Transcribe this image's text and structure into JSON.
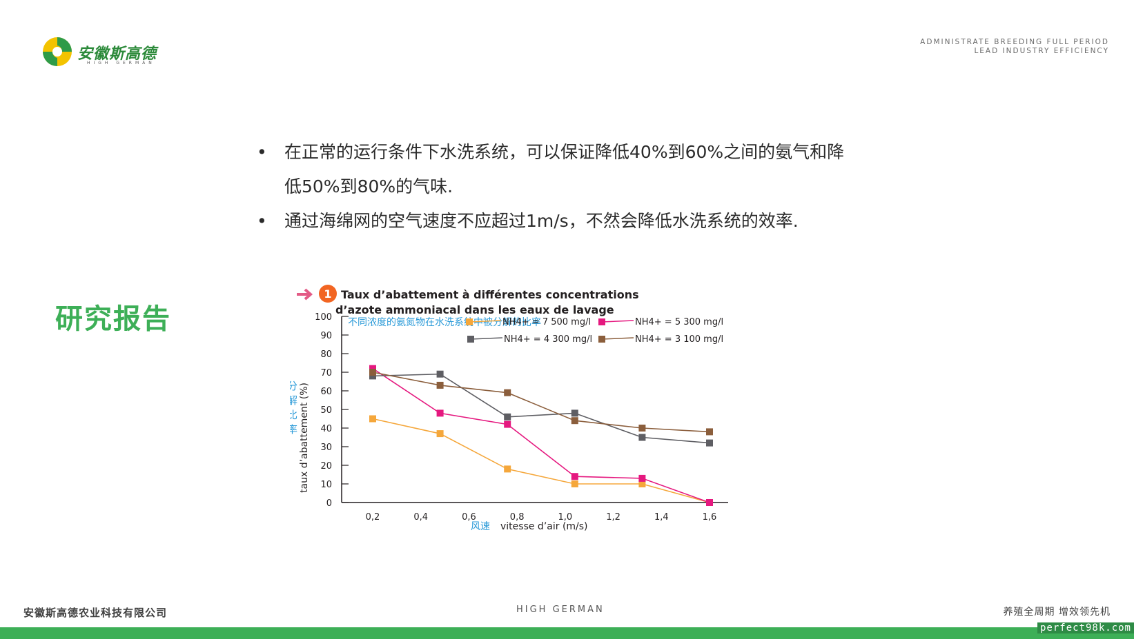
{
  "header": {
    "logo_name": "安徽斯高德",
    "logo_sub": "HIGH GERMAN",
    "slogan_line1": "ADMINISTRATE BREEDING FULL PERIOD",
    "slogan_line2": "LEAD INDUSTRY EFFICIENCY"
  },
  "content": {
    "bullet_char": "•",
    "bullets": [
      "在正常的运行条件下水洗系统，可以保证降低40%到60%之间的氨气和降低50%到80%的气味.",
      "通过海绵网的空气速度不应超过1m/s，不然会降低水洗系统的效率."
    ],
    "side_title": "研究报告"
  },
  "chart_data": {
    "type": "line",
    "marker_number": "1",
    "title_line1": "Taux d’abattement à différentes concentrations",
    "title_line2": "d’azote ammoniacal dans les eaux de lavage",
    "subtitle": "不同浓度的氨氮物在水洗系统中被分解的比率",
    "ylabel": "taux d’abattement (%)",
    "ylabel_cn": "分解比率",
    "xlabel": "vitesse d’air (m/s)",
    "xlabel_cn": "风速",
    "x_ticks": [
      "0,2",
      "0,4",
      "0,6",
      "0,8",
      "1,0",
      "1,2",
      "1,4",
      "1,6"
    ],
    "y_ticks": [
      0,
      10,
      20,
      30,
      40,
      50,
      60,
      70,
      80,
      90,
      100
    ],
    "xlim": [
      0.2,
      1.6
    ],
    "ylim": [
      0,
      100
    ],
    "legend_placement": "top",
    "series": [
      {
        "name": "NH4+ = 7 500 mg/l",
        "color": "#f5a73b",
        "x": [
          0.2,
          0.48,
          0.76,
          1.04,
          1.32,
          1.6
        ],
        "values": [
          45,
          37,
          18,
          10,
          10,
          0
        ]
      },
      {
        "name": "NH4+ = 5 300 mg/l",
        "color": "#e5187f",
        "x": [
          0.2,
          0.48,
          0.76,
          1.04,
          1.32,
          1.6
        ],
        "values": [
          72,
          48,
          42,
          14,
          13,
          0
        ]
      },
      {
        "name": "NH4+ = 4 300 mg/l",
        "color": "#5e5e63",
        "x": [
          0.2,
          0.48,
          0.76,
          1.04,
          1.32,
          1.6
        ],
        "values": [
          68,
          69,
          46,
          48,
          35,
          32
        ]
      },
      {
        "name": "NH4+ = 3 100 mg/l",
        "color": "#8b5e3c",
        "x": [
          0.2,
          0.48,
          0.76,
          1.04,
          1.32,
          1.6
        ],
        "values": [
          70,
          63,
          59,
          44,
          40,
          38
        ]
      }
    ]
  },
  "footer": {
    "company": "安徽斯高德农业科技有限公司",
    "brand": "HIGH GERMAN",
    "tagline": "养殖全周期 增效领先机",
    "watermark": "perfect98k.com"
  }
}
